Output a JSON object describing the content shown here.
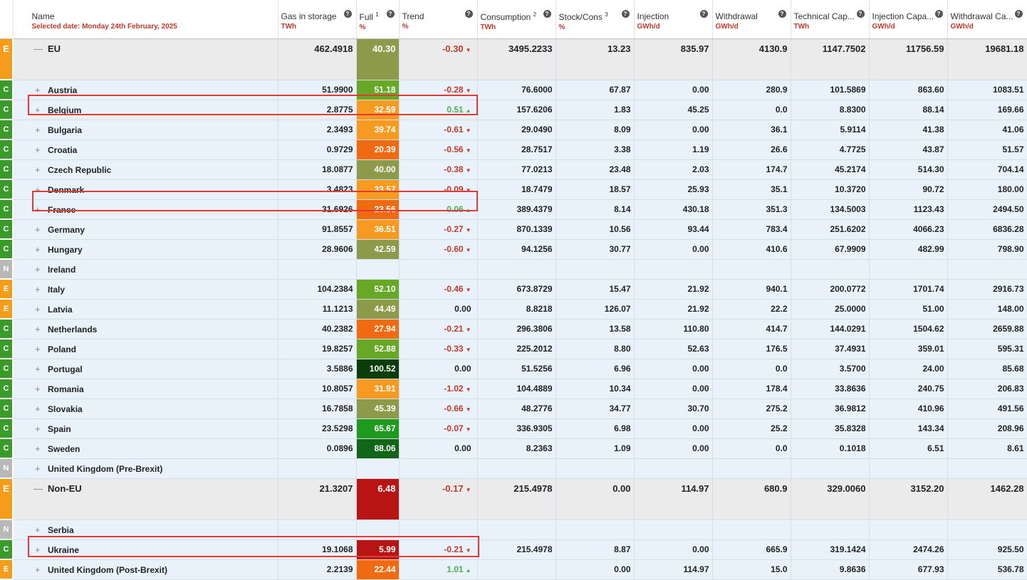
{
  "header": {
    "name_label": "Name",
    "selected_date": "Selected date: Monday 24th February, 2025",
    "columns": [
      {
        "label": "Gas in storage",
        "sup": "",
        "unit": "TWh"
      },
      {
        "label": "Full",
        "sup": "1",
        "unit": "%"
      },
      {
        "label": "Trend",
        "sup": "",
        "unit": "%"
      },
      {
        "label": "Consumption",
        "sup": "2",
        "unit": "TWh"
      },
      {
        "label": "Stock/Cons",
        "sup": "3",
        "unit": "%"
      },
      {
        "label": "Injection",
        "sup": "",
        "unit": "GWh/d"
      },
      {
        "label": "Withdrawal",
        "sup": "",
        "unit": "GWh/d"
      },
      {
        "label": "Technical Cap...",
        "sup": "",
        "unit": "TWh"
      },
      {
        "label": "Injection Capa...",
        "sup": "",
        "unit": "GWh/d"
      },
      {
        "label": "Withdrawal Ca...",
        "sup": "",
        "unit": "GWh/d"
      }
    ],
    "help_glyph": "?"
  },
  "rows": [
    {
      "type": "group",
      "cat": "E",
      "expander": "—",
      "name": "EU",
      "storage": "462.4918",
      "full": "40.30",
      "full_color": "#8c9a4a",
      "trend": "-0.30",
      "trend_dir": "down",
      "consumption": "3495.2233",
      "stock_cons": "13.23",
      "injection": "835.97",
      "withdrawal": "4130.9",
      "tech_cap": "1147.7502",
      "inj_cap": "11756.59",
      "wd_cap": "19681.18"
    },
    {
      "type": "item",
      "cat": "C",
      "expander": "+",
      "name": "Austria",
      "storage": "51.9900",
      "full": "51.18",
      "full_color": "#67a826",
      "trend": "-0.28",
      "trend_dir": "down",
      "consumption": "76.6000",
      "stock_cons": "67.87",
      "injection": "0.00",
      "withdrawal": "280.9",
      "tech_cap": "101.5869",
      "inj_cap": "863.60",
      "wd_cap": "1083.51"
    },
    {
      "type": "item",
      "cat": "C",
      "expander": "+",
      "name": "Belgium",
      "storage": "2.8775",
      "full": "32.59",
      "full_color": "#f79a22",
      "trend": "0.51",
      "trend_dir": "up",
      "consumption": "157.6206",
      "stock_cons": "1.83",
      "injection": "45.25",
      "withdrawal": "0.0",
      "tech_cap": "8.8300",
      "inj_cap": "88.14",
      "wd_cap": "169.66"
    },
    {
      "type": "item",
      "cat": "C",
      "expander": "+",
      "name": "Bulgaria",
      "storage": "2.3493",
      "full": "39.74",
      "full_color": "#f79a22",
      "trend": "-0.61",
      "trend_dir": "down",
      "consumption": "29.0490",
      "stock_cons": "8.09",
      "injection": "0.00",
      "withdrawal": "36.1",
      "tech_cap": "5.9114",
      "inj_cap": "41.38",
      "wd_cap": "41.06"
    },
    {
      "type": "item",
      "cat": "C",
      "expander": "+",
      "name": "Croatia",
      "storage": "0.9729",
      "full": "20.39",
      "full_color": "#f06a12",
      "trend": "-0.56",
      "trend_dir": "down",
      "consumption": "28.7517",
      "stock_cons": "3.38",
      "injection": "1.19",
      "withdrawal": "26.6",
      "tech_cap": "4.7725",
      "inj_cap": "43.87",
      "wd_cap": "51.57"
    },
    {
      "type": "item",
      "cat": "C",
      "expander": "+",
      "name": "Czech Republic",
      "storage": "18.0877",
      "full": "40.00",
      "full_color": "#8c9a4a",
      "trend": "-0.38",
      "trend_dir": "down",
      "consumption": "77.0213",
      "stock_cons": "23.48",
      "injection": "2.03",
      "withdrawal": "174.7",
      "tech_cap": "45.2174",
      "inj_cap": "514.30",
      "wd_cap": "704.14"
    },
    {
      "type": "item",
      "cat": "C",
      "expander": "+",
      "name": "Denmark",
      "storage": "3.4823",
      "full": "33.57",
      "full_color": "#f79a22",
      "trend": "-0.09",
      "trend_dir": "down",
      "consumption": "18.7479",
      "stock_cons": "18.57",
      "injection": "25.93",
      "withdrawal": "35.1",
      "tech_cap": "10.3720",
      "inj_cap": "90.72",
      "wd_cap": "180.00"
    },
    {
      "type": "item",
      "cat": "C",
      "expander": "+",
      "name": "France",
      "storage": "31.6926",
      "full": "23.56",
      "full_color": "#f06a12",
      "trend": "0.06",
      "trend_dir": "up",
      "consumption": "389.4379",
      "stock_cons": "8.14",
      "injection": "430.18",
      "withdrawal": "351.3",
      "tech_cap": "134.5003",
      "inj_cap": "1123.43",
      "wd_cap": "2494.50"
    },
    {
      "type": "item",
      "cat": "C",
      "expander": "+",
      "name": "Germany",
      "storage": "91.8557",
      "full": "36.51",
      "full_color": "#f79a22",
      "trend": "-0.27",
      "trend_dir": "down",
      "consumption": "870.1339",
      "stock_cons": "10.56",
      "injection": "93.44",
      "withdrawal": "783.4",
      "tech_cap": "251.6202",
      "inj_cap": "4066.23",
      "wd_cap": "6836.28"
    },
    {
      "type": "item",
      "cat": "C",
      "expander": "+",
      "name": "Hungary",
      "storage": "28.9606",
      "full": "42.59",
      "full_color": "#8c9a4a",
      "trend": "-0.60",
      "trend_dir": "down",
      "consumption": "94.1256",
      "stock_cons": "30.77",
      "injection": "0.00",
      "withdrawal": "410.6",
      "tech_cap": "67.9909",
      "inj_cap": "482.99",
      "wd_cap": "798.90"
    },
    {
      "type": "item",
      "cat": "N",
      "expander": "+",
      "name": "Ireland",
      "storage": "",
      "full": "",
      "full_color": "",
      "trend": "",
      "trend_dir": "none",
      "consumption": "",
      "stock_cons": "",
      "injection": "",
      "withdrawal": "",
      "tech_cap": "",
      "inj_cap": "",
      "wd_cap": ""
    },
    {
      "type": "item",
      "cat": "E",
      "expander": "+",
      "name": "Italy",
      "storage": "104.2384",
      "full": "52.10",
      "full_color": "#67a826",
      "trend": "-0.46",
      "trend_dir": "down",
      "consumption": "673.8729",
      "stock_cons": "15.47",
      "injection": "21.92",
      "withdrawal": "940.1",
      "tech_cap": "200.0772",
      "inj_cap": "1701.74",
      "wd_cap": "2916.73"
    },
    {
      "type": "item",
      "cat": "E",
      "expander": "+",
      "name": "Latvia",
      "storage": "11.1213",
      "full": "44.49",
      "full_color": "#8c9a4a",
      "trend": "0.00",
      "trend_dir": "flat",
      "consumption": "8.8218",
      "stock_cons": "126.07",
      "injection": "21.92",
      "withdrawal": "22.2",
      "tech_cap": "25.0000",
      "inj_cap": "51.00",
      "wd_cap": "148.00"
    },
    {
      "type": "item",
      "cat": "C",
      "expander": "+",
      "name": "Netherlands",
      "storage": "40.2382",
      "full": "27.94",
      "full_color": "#f06a12",
      "trend": "-0.21",
      "trend_dir": "down",
      "consumption": "296.3806",
      "stock_cons": "13.58",
      "injection": "110.80",
      "withdrawal": "414.7",
      "tech_cap": "144.0291",
      "inj_cap": "1504.62",
      "wd_cap": "2659.88"
    },
    {
      "type": "item",
      "cat": "C",
      "expander": "+",
      "name": "Poland",
      "storage": "19.8257",
      "full": "52.88",
      "full_color": "#67a826",
      "trend": "-0.33",
      "trend_dir": "down",
      "consumption": "225.2012",
      "stock_cons": "8.80",
      "injection": "52.63",
      "withdrawal": "176.5",
      "tech_cap": "37.4931",
      "inj_cap": "359.01",
      "wd_cap": "595.31"
    },
    {
      "type": "item",
      "cat": "C",
      "expander": "+",
      "name": "Portugal",
      "storage": "3.5886",
      "full": "100.52",
      "full_color": "#0a3d0a",
      "trend": "0.00",
      "trend_dir": "flat",
      "consumption": "51.5256",
      "stock_cons": "6.96",
      "injection": "0.00",
      "withdrawal": "0.0",
      "tech_cap": "3.5700",
      "inj_cap": "24.00",
      "wd_cap": "85.68"
    },
    {
      "type": "item",
      "cat": "C",
      "expander": "+",
      "name": "Romania",
      "storage": "10.8057",
      "full": "31.91",
      "full_color": "#f79a22",
      "trend": "-1.02",
      "trend_dir": "down",
      "consumption": "104.4889",
      "stock_cons": "10.34",
      "injection": "0.00",
      "withdrawal": "178.4",
      "tech_cap": "33.8636",
      "inj_cap": "240.75",
      "wd_cap": "206.83"
    },
    {
      "type": "item",
      "cat": "C",
      "expander": "+",
      "name": "Slovakia",
      "storage": "16.7858",
      "full": "45.39",
      "full_color": "#8c9a4a",
      "trend": "-0.66",
      "trend_dir": "down",
      "consumption": "48.2776",
      "stock_cons": "34.77",
      "injection": "30.70",
      "withdrawal": "275.2",
      "tech_cap": "36.9812",
      "inj_cap": "410.96",
      "wd_cap": "491.56"
    },
    {
      "type": "item",
      "cat": "C",
      "expander": "+",
      "name": "Spain",
      "storage": "23.5298",
      "full": "65.67",
      "full_color": "#1e9a1e",
      "trend": "-0.07",
      "trend_dir": "down",
      "consumption": "336.9305",
      "stock_cons": "6.98",
      "injection": "0.00",
      "withdrawal": "25.2",
      "tech_cap": "35.8328",
      "inj_cap": "143.34",
      "wd_cap": "208.96"
    },
    {
      "type": "item",
      "cat": "C",
      "expander": "+",
      "name": "Sweden",
      "storage": "0.0896",
      "full": "88.06",
      "full_color": "#11661a",
      "trend": "0.00",
      "trend_dir": "flat",
      "consumption": "8.2363",
      "stock_cons": "1.09",
      "injection": "0.00",
      "withdrawal": "0.0",
      "tech_cap": "0.1018",
      "inj_cap": "6.51",
      "wd_cap": "8.61"
    },
    {
      "type": "item",
      "cat": "N",
      "expander": "+",
      "name": "United Kingdom (Pre-Brexit)",
      "storage": "",
      "full": "",
      "full_color": "",
      "trend": "",
      "trend_dir": "none",
      "consumption": "",
      "stock_cons": "",
      "injection": "",
      "withdrawal": "",
      "tech_cap": "",
      "inj_cap": "",
      "wd_cap": ""
    },
    {
      "type": "group",
      "cat": "E",
      "expander": "—",
      "name": "Non-EU",
      "storage": "21.3207",
      "full": "6.48",
      "full_color": "#b81414",
      "trend": "-0.17",
      "trend_dir": "down",
      "consumption": "215.4978",
      "stock_cons": "0.00",
      "injection": "114.97",
      "withdrawal": "680.9",
      "tech_cap": "329.0060",
      "inj_cap": "3152.20",
      "wd_cap": "1462.28"
    },
    {
      "type": "item",
      "cat": "N",
      "expander": "+",
      "name": "Serbia",
      "storage": "",
      "full": "",
      "full_color": "",
      "trend": "",
      "trend_dir": "none",
      "consumption": "",
      "stock_cons": "",
      "injection": "",
      "withdrawal": "",
      "tech_cap": "",
      "inj_cap": "",
      "wd_cap": ""
    },
    {
      "type": "item",
      "cat": "C",
      "expander": "+",
      "name": "Ukraine",
      "storage": "19.1068",
      "full": "5.99",
      "full_color": "#b81414",
      "trend": "-0.21",
      "trend_dir": "down",
      "consumption": "215.4978",
      "stock_cons": "8.87",
      "injection": "0.00",
      "withdrawal": "665.9",
      "tech_cap": "319.1424",
      "inj_cap": "2474.26",
      "wd_cap": "925.50"
    },
    {
      "type": "item",
      "cat": "E",
      "expander": "+",
      "name": "United Kingdom (Post-Brexit)",
      "storage": "2.2139",
      "full": "22.44",
      "full_color": "#f06a12",
      "trend": "1.01",
      "trend_dir": "up",
      "consumption": "",
      "stock_cons": "0.00",
      "injection": "114.97",
      "withdrawal": "15.0",
      "tech_cap": "9.8636",
      "inj_cap": "677.93",
      "wd_cap": "536.78"
    }
  ],
  "glyphs": {
    "arrow_up": "▲",
    "arrow_down": "▼"
  },
  "colors": {
    "highlight": "#e53935",
    "cat_C": "#3a9a2a",
    "cat_E": "#f59d1b",
    "cat_N": "#b8b8b8"
  }
}
